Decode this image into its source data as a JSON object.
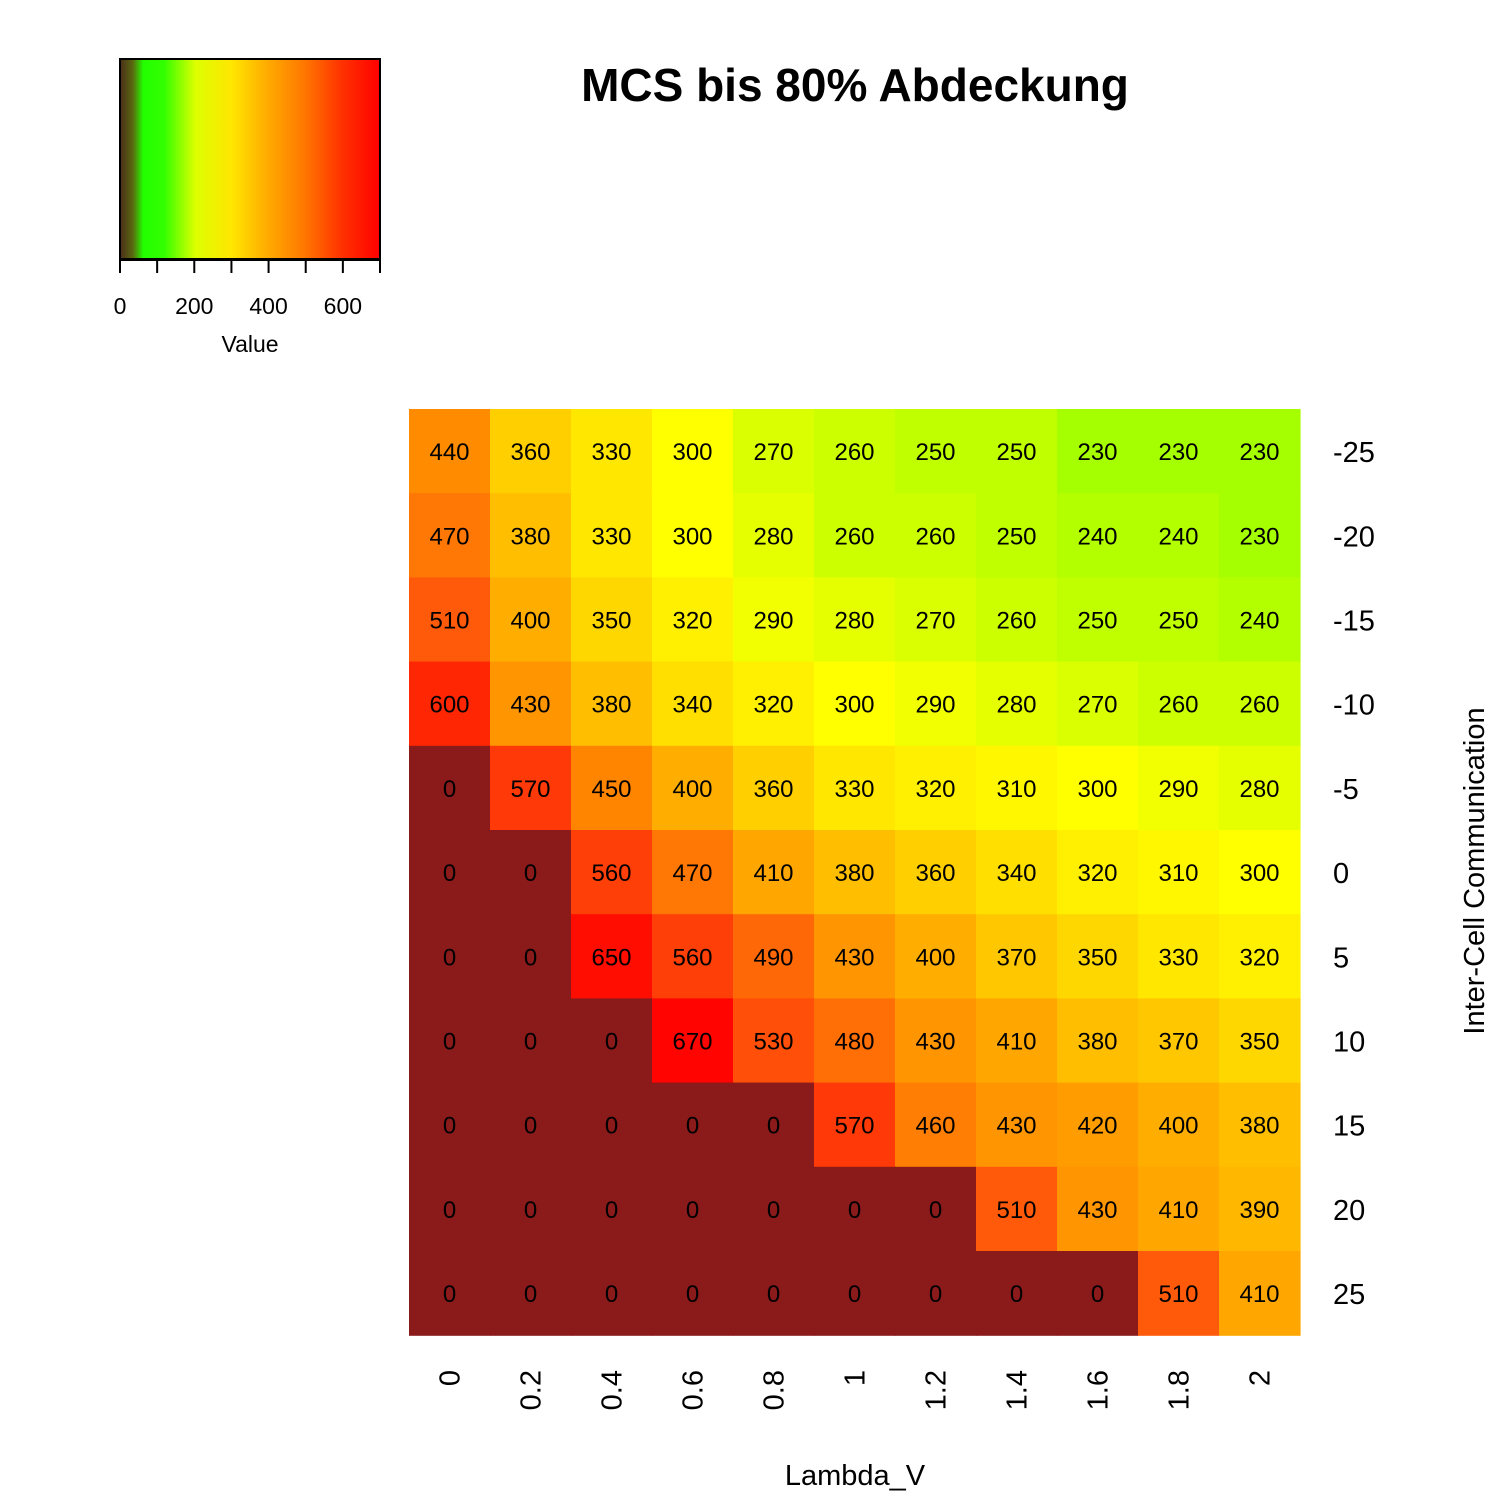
{
  "chart_data": {
    "type": "heatmap",
    "title": "MCS bis 80% Abdeckung",
    "xlabel": "Lambda_V",
    "ylabel": "Inter-Cell Communication",
    "x_categories": [
      "0",
      "0.2",
      "0.4",
      "0.6",
      "0.8",
      "1",
      "1.2",
      "1.4",
      "1.6",
      "1.8",
      "2"
    ],
    "y_categories": [
      "-25",
      "-20",
      "-15",
      "-10",
      "-5",
      "0",
      "5",
      "10",
      "15",
      "20",
      "25"
    ],
    "values": [
      [
        440,
        360,
        330,
        300,
        270,
        260,
        250,
        250,
        230,
        230,
        230
      ],
      [
        470,
        380,
        330,
        300,
        280,
        260,
        260,
        250,
        240,
        240,
        230
      ],
      [
        510,
        400,
        350,
        320,
        290,
        280,
        270,
        260,
        250,
        250,
        240
      ],
      [
        600,
        430,
        380,
        340,
        320,
        300,
        290,
        280,
        270,
        260,
        260
      ],
      [
        0,
        570,
        450,
        400,
        360,
        330,
        320,
        310,
        300,
        290,
        280
      ],
      [
        0,
        0,
        560,
        470,
        410,
        380,
        360,
        340,
        320,
        310,
        300
      ],
      [
        0,
        0,
        650,
        560,
        490,
        430,
        400,
        370,
        350,
        330,
        320
      ],
      [
        0,
        0,
        0,
        670,
        530,
        480,
        430,
        410,
        380,
        370,
        350
      ],
      [
        0,
        0,
        0,
        0,
        0,
        570,
        460,
        430,
        420,
        400,
        380
      ],
      [
        0,
        0,
        0,
        0,
        0,
        0,
        0,
        510,
        430,
        410,
        390
      ],
      [
        0,
        0,
        0,
        0,
        0,
        0,
        0,
        0,
        0,
        510,
        410
      ]
    ],
    "color_key": {
      "label": "Value",
      "range": [
        0,
        700
      ],
      "tick_labels": [
        "0",
        "200",
        "400",
        "600"
      ],
      "tick_values": [
        0,
        200,
        400,
        600
      ],
      "minor_tick_values": [
        0,
        100,
        200,
        300,
        400,
        500,
        600,
        700
      ],
      "colors": [
        "#8b1a1a",
        "#00ff00",
        "#ffff00",
        "#ffa500",
        "#ff0000"
      ],
      "zero_color": "#8b1a1a"
    }
  }
}
